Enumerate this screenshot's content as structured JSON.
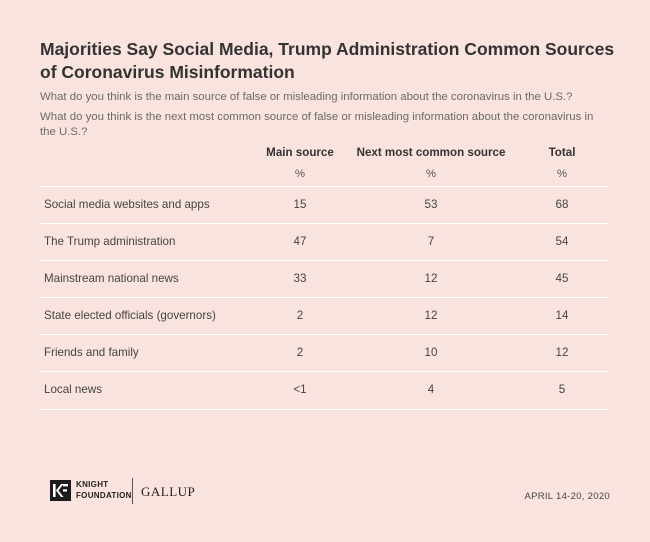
{
  "title": "Majorities Say Social Media, Trump Administration Common Sources of Coronavirus Misinformation",
  "questions": [
    "What do you think is the main source of false or misleading information about the coronavirus in the U.S.?",
    "What do you think is the next most common source of false or misleading information about the coronavirus in the U.S.?"
  ],
  "chart_data": {
    "type": "table",
    "columns": [
      "Main source",
      "Next most common source",
      "Total"
    ],
    "units": [
      "%",
      "%",
      "%"
    ],
    "rows": [
      {
        "label": "Social media websites and apps",
        "values": [
          "15",
          "53",
          "68"
        ]
      },
      {
        "label": "The Trump administration",
        "values": [
          "47",
          "7",
          "54"
        ]
      },
      {
        "label": "Mainstream national news",
        "values": [
          "33",
          "12",
          "45"
        ]
      },
      {
        "label": "State elected officials (governors)",
        "values": [
          "2",
          "12",
          "14"
        ]
      },
      {
        "label": "Friends and family",
        "values": [
          "2",
          "10",
          "12"
        ]
      },
      {
        "label": "Local news",
        "values": [
          "<1",
          "4",
          "5"
        ]
      }
    ]
  },
  "footer": {
    "logo_mark": "KF",
    "knight_foundation": "KNIGHT FOUNDATION",
    "knight_line1": "KNIGHT",
    "knight_line2": "FOUNDATION",
    "gallup": "GALLUP",
    "date": "APRIL 14-20, 2020"
  },
  "colors": {
    "background": "#f9e3df",
    "title": "#333333",
    "text": "#444444"
  }
}
